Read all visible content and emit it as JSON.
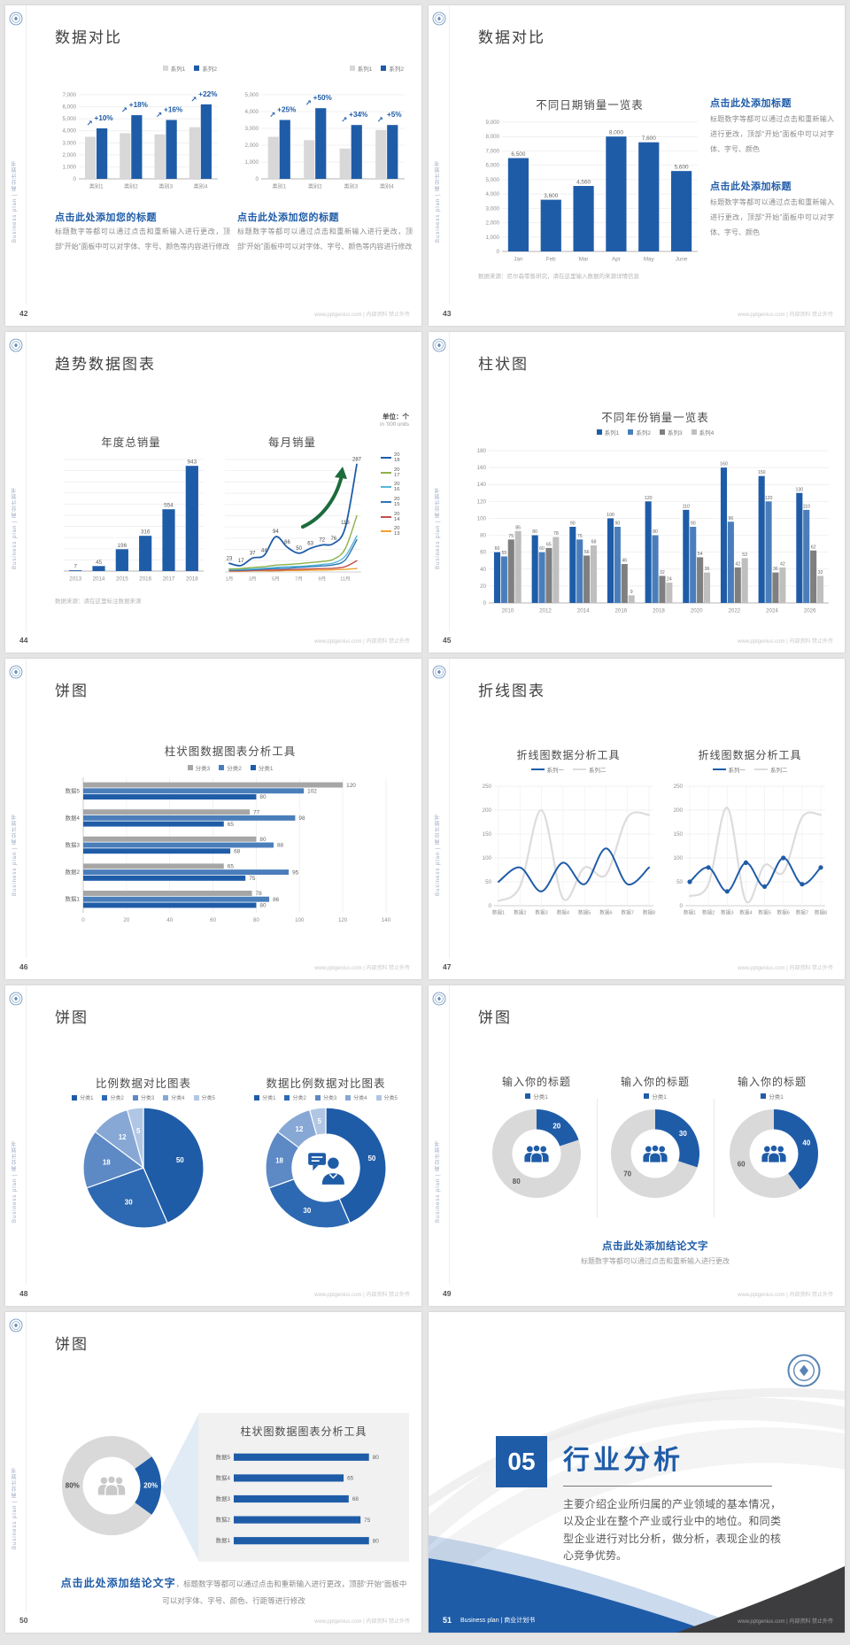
{
  "common": {
    "site_footer": "www.pptgenius.com | 内部资料 禁止外传",
    "sidebar_text": "Business plan | 商业计划书"
  },
  "slides": {
    "s42": {
      "page": "42",
      "title": "数据对比",
      "heading": "点击此处添加您的标题",
      "para": "标题数字等都可以通过点击和重新输入进行更改，顶部“开始”面板中可以对字体、字号、颜色等内容进行修改"
    },
    "s43": {
      "page": "43",
      "title": "数据对比",
      "caption": "数据来源：尼尔森零售研究，请在这里输入数据的来源详情信息",
      "heading": "点击此处添加标题",
      "para": "标题数字等都可以通过点击和重新输入进行更改，顶部“开始”面板中可以对字体、字号、颜色"
    },
    "s44": {
      "page": "44",
      "title": "趋势数据图表",
      "unit_zh": "单位：个",
      "unit_en": "in '000 units",
      "source": "数据来源：请在这里标注数据来源"
    },
    "s45": {
      "page": "45",
      "title": "柱状图"
    },
    "s46": {
      "page": "46",
      "title": "饼图"
    },
    "s47": {
      "page": "47",
      "title": "折线图表"
    },
    "s48": {
      "page": "48",
      "title": "饼图"
    },
    "s49": {
      "page": "49",
      "title": "饼图",
      "conclusion": "点击此处添加结论文字",
      "note": "标题数字等都可以通过点击和重新输入进行更改"
    },
    "s50": {
      "page": "50",
      "title": "饼图",
      "conclusion": "点击此处添加结论文字",
      "note": "，标题数字等都可以通过点击和重新输入进行更改，顶部“开始”面板中可以对字体、字号、颜色、行距等进行修改"
    },
    "s51": {
      "page": "51",
      "number": "05",
      "title": "行业分析",
      "body": "主要介绍企业所归属的产业领域的基本情况，以及企业在整个产业或行业中的地位。和同类型企业进行对比分析，做分析，表现企业的核心竞争优势。",
      "footer_left": "Business plan | 商业计划书"
    }
  },
  "chart_data": [
    {
      "id": "s42-left",
      "type": "column",
      "categories": [
        "类别1",
        "类别2",
        "类别3",
        "类别4"
      ],
      "series": [
        {
          "name": "系列1",
          "color": "#d8d8d8",
          "values": [
            3500,
            3800,
            3700,
            4300
          ]
        },
        {
          "name": "系列2",
          "color": "#1f5ca8",
          "values": [
            4200,
            5300,
            4900,
            6200
          ]
        }
      ],
      "ylim": [
        0,
        7000
      ],
      "ystep": 1000,
      "annotations": [
        "+10%",
        "+18%",
        "+16%",
        "+22%"
      ],
      "annotation_icon": "↗"
    },
    {
      "id": "s42-right",
      "type": "column",
      "categories": [
        "类别1",
        "类别2",
        "类别3",
        "类别4"
      ],
      "series": [
        {
          "name": "系列1",
          "color": "#d8d8d8",
          "values": [
            2500,
            2300,
            1800,
            2900
          ]
        },
        {
          "name": "系列2",
          "color": "#1f5ca8",
          "values": [
            3500,
            4200,
            3200,
            3200
          ]
        }
      ],
      "ylim": [
        0,
        5000
      ],
      "ystep": 1000,
      "annotations": [
        "+25%",
        "+50%",
        "+34%",
        "+5%"
      ],
      "annotation_icon": "↗"
    },
    {
      "id": "s43",
      "type": "column",
      "title": "不同日期销量一览表",
      "categories": [
        "Jan",
        "Feb",
        "Mar",
        "Apr",
        "May",
        "June"
      ],
      "series": [
        {
          "name": "销量",
          "color": "#1f5ca8",
          "values": [
            6500,
            3600,
            4560,
            8000,
            7600,
            5600
          ]
        }
      ],
      "ylim": [
        0,
        9000
      ],
      "ystep": 1000,
      "value_labels": true,
      "bar_max": 24
    },
    {
      "id": "s44-bar",
      "type": "column",
      "title": "年度总销量",
      "categories": [
        "2013",
        "2014",
        "2015",
        "2016",
        "2017",
        "2018"
      ],
      "series": [
        {
          "name": "年度总销量",
          "color": "#1f5ca8",
          "values": [
            7,
            45,
            196,
            316,
            554,
            943
          ]
        }
      ],
      "ylim": [
        0,
        1000
      ],
      "ystep": 100,
      "value_labels": true,
      "y_labels": false,
      "bar_max": 15
    },
    {
      "id": "s44-line",
      "type": "line",
      "title": "每月销量",
      "categories": [
        "1月",
        "2月",
        "3月",
        "4月",
        "5月",
        "6月",
        "7月",
        "8月",
        "9月",
        "10月",
        "11月",
        "12月"
      ],
      "xtick_every": 2,
      "ylim": [
        0,
        300
      ],
      "ystep": 30,
      "y_labels": false,
      "mr": 16,
      "legend_type": "years",
      "series": [
        {
          "name": "2018",
          "color": "#1f5ca8",
          "width": 1.8,
          "values": [
            23,
            17,
            37,
            44,
            94,
            66,
            50,
            63,
            72,
            76,
            118,
            287
          ],
          "point_labels": true
        },
        {
          "name": "2017",
          "color": "#8db04a",
          "values": [
            8,
            9,
            12,
            14,
            18,
            20,
            22,
            25,
            28,
            34,
            62,
            150
          ]
        },
        {
          "name": "2016",
          "color": "#56b6d9",
          "values": [
            6,
            7,
            8,
            10,
            12,
            14,
            15,
            17,
            20,
            24,
            42,
            96
          ]
        },
        {
          "name": "2015",
          "color": "#2e75b6",
          "values": [
            5,
            5,
            6,
            8,
            9,
            10,
            12,
            14,
            16,
            19,
            32,
            86
          ]
        },
        {
          "name": "2014",
          "color": "#c0504d",
          "values": [
            3,
            3,
            4,
            5,
            5,
            6,
            7,
            8,
            9,
            10,
            14,
            30
          ]
        },
        {
          "name": "2013",
          "color": "#f0a22e",
          "values": [
            2,
            2,
            3,
            3,
            3,
            4,
            4,
            5,
            5,
            6,
            7,
            9
          ]
        }
      ]
    },
    {
      "id": "s45",
      "type": "column",
      "title": "不同年份销量一览表",
      "categories": [
        "2010",
        "2012",
        "2014",
        "2016",
        "2018",
        "2020",
        "2022",
        "2024",
        "2026"
      ],
      "series": [
        {
          "name": "系列1",
          "color": "#1f5ca8",
          "values": [
            60,
            80,
            90,
            100,
            120,
            110,
            160,
            150,
            130
          ]
        },
        {
          "name": "系列2",
          "color": "#4a7ebb",
          "values": [
            55,
            60,
            75,
            90,
            80,
            90,
            96,
            120,
            110
          ]
        },
        {
          "name": "系列3",
          "color": "#7f7f7f",
          "values": [
            75,
            65,
            56,
            46,
            32,
            54,
            42,
            36,
            62
          ]
        },
        {
          "name": "系列4",
          "color": "#bfbfbf",
          "values": [
            85,
            78,
            68,
            9,
            24,
            36,
            53,
            42,
            32
          ]
        }
      ],
      "ylim": [
        0,
        180
      ],
      "ystep": 20,
      "value_labels": true
    },
    {
      "id": "s46",
      "type": "bar",
      "title": "柱状图数据图表分析工具",
      "categories": [
        "数据5",
        "数据4",
        "数据3",
        "数据2",
        "数据1"
      ],
      "series": [
        {
          "name": "分类3",
          "color": "#a6a6a6",
          "values": [
            120,
            77,
            80,
            65,
            78
          ]
        },
        {
          "name": "分类2",
          "color": "#4a7ebb",
          "values": [
            102,
            98,
            88,
            95,
            86
          ]
        },
        {
          "name": "分类1",
          "color": "#1f5ca8",
          "values": [
            80,
            65,
            68,
            75,
            80
          ]
        }
      ],
      "xlim": [
        0,
        140
      ],
      "xstep": 20,
      "value_labels": true
    },
    {
      "id": "s47-left",
      "type": "line",
      "title": "折线图数据分析工具",
      "legend_type": "line",
      "vgrid": true,
      "categories": [
        "数据1",
        "数据2",
        "数据3",
        "数据4",
        "数据5",
        "数据6",
        "数据7",
        "数据8"
      ],
      "ylim": [
        0,
        250
      ],
      "ystep": 50,
      "series": [
        {
          "name": "系列一",
          "color": "#1f5ca8",
          "width": 2,
          "values": [
            50,
            80,
            30,
            90,
            45,
            120,
            45,
            80
          ]
        },
        {
          "name": "系列二",
          "color": "#dcdcdc",
          "width": 2.2,
          "values": [
            10,
            40,
            200,
            15,
            80,
            65,
            185,
            190
          ]
        }
      ]
    },
    {
      "id": "s47-right",
      "type": "line",
      "title": "折线图数据分析工具",
      "legend_type": "line",
      "vgrid": true,
      "categories": [
        "数据1",
        "数据2",
        "数据3",
        "数据4",
        "数据5",
        "数据6",
        "数据7",
        "数据8"
      ],
      "ylim": [
        0,
        250
      ],
      "ystep": 50,
      "series": [
        {
          "name": "系列一",
          "color": "#1f5ca8",
          "width": 2,
          "markers": true,
          "values": [
            50,
            80,
            30,
            90,
            40,
            100,
            45,
            80
          ]
        },
        {
          "name": "系列二",
          "color": "#dcdcdc",
          "width": 2.2,
          "values": [
            20,
            45,
            205,
            10,
            85,
            70,
            185,
            190
          ]
        }
      ]
    },
    {
      "id": "s48-left",
      "type": "pie",
      "title": "比例数据对比图表",
      "values": [
        50,
        30,
        18,
        12,
        5
      ],
      "labels": [
        "50",
        "30",
        "18",
        "12",
        "5"
      ],
      "colors": [
        "#1f5ca8",
        "#2d69b2",
        "#5d89c5",
        "#87a8d5",
        "#b0c6e4"
      ],
      "stroke": "#ffffff",
      "legend_items": [
        {
          "name": "分类1",
          "color": "#1f5ca8"
        },
        {
          "name": "分类2",
          "color": "#2d69b2"
        },
        {
          "name": "分类3",
          "color": "#5d89c5"
        },
        {
          "name": "分类4",
          "color": "#87a8d5"
        },
        {
          "name": "分类5",
          "color": "#b0c6e4"
        }
      ]
    },
    {
      "id": "s48-right",
      "type": "pie",
      "title": "数据比例数据对比图表",
      "inner": 0.56,
      "values": [
        50,
        30,
        18,
        12,
        5
      ],
      "labels": [
        "50",
        "30",
        "18",
        "12",
        "5"
      ],
      "colors": [
        "#1f5ca8",
        "#2d69b2",
        "#5d89c5",
        "#87a8d5",
        "#b0c6e4"
      ],
      "stroke": "#ffffff",
      "center_icon": "person-chat",
      "legend_items": [
        {
          "name": "分类1",
          "color": "#1f5ca8"
        },
        {
          "name": "分类2",
          "color": "#2d69b2"
        },
        {
          "name": "分类3",
          "color": "#5d89c5"
        },
        {
          "name": "分类4",
          "color": "#87a8d5"
        },
        {
          "name": "分类5",
          "color": "#b0c6e4"
        }
      ]
    },
    {
      "id": "s49-1",
      "type": "pie",
      "title": "输入你的标题",
      "inner": 0.55,
      "values": [
        20,
        80
      ],
      "labels": [
        "20",
        "80"
      ],
      "colors": [
        "#1f5ca8",
        "#d9d9d9"
      ],
      "label_colors": [
        "#ffffff",
        "#595959"
      ],
      "center_icon": "people-group",
      "legend_items": [
        {
          "name": "分类1",
          "color": "#1f5ca8"
        }
      ]
    },
    {
      "id": "s49-2",
      "type": "pie",
      "title": "输入你的标题",
      "inner": 0.55,
      "values": [
        30,
        70
      ],
      "labels": [
        "30",
        "70"
      ],
      "colors": [
        "#1f5ca8",
        "#d9d9d9"
      ],
      "label_colors": [
        "#ffffff",
        "#595959"
      ],
      "center_icon": "people-group",
      "legend_items": [
        {
          "name": "分类1",
          "color": "#1f5ca8"
        }
      ]
    },
    {
      "id": "s49-3",
      "type": "pie",
      "title": "输入你的标题",
      "inner": 0.55,
      "values": [
        40,
        60
      ],
      "labels": [
        "40",
        "60"
      ],
      "colors": [
        "#1f5ca8",
        "#d9d9d9"
      ],
      "label_colors": [
        "#ffffff",
        "#595959"
      ],
      "center_icon": "people-group",
      "legend_items": [
        {
          "name": "分类1",
          "color": "#1f5ca8"
        }
      ]
    },
    {
      "id": "s50-donut",
      "type": "pie",
      "inner": 0.58,
      "start": -36,
      "values": [
        20,
        80
      ],
      "labels": [
        "20%",
        "80%"
      ],
      "colors": [
        "#1f5ca8",
        "#d9d9d9"
      ],
      "label_colors": [
        "#ffffff",
        "#4a4a4a"
      ],
      "center_icon": "people-group-gray"
    },
    {
      "id": "s50-bars",
      "type": "bar",
      "title": "柱状图数据图表分析工具",
      "categories": [
        "数据5",
        "数据4",
        "数据3",
        "数据2",
        "数据1"
      ],
      "series": [
        {
          "name": "数据",
          "color": "#1f5ca8",
          "values": [
            80,
            65,
            68,
            75,
            80
          ]
        }
      ],
      "xlim": [
        0,
        88
      ],
      "value_labels": true,
      "x_labels": false
    }
  ]
}
